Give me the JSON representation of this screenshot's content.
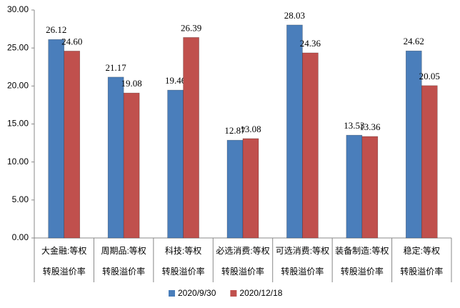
{
  "chart_data": {
    "type": "bar",
    "categories": [
      [
        "大金融:等权",
        "转股溢价率"
      ],
      [
        "周期品:等权",
        "转股溢价率"
      ],
      [
        "科技:等权",
        "转股溢价率"
      ],
      [
        "必选消费:等权",
        "转股溢价率"
      ],
      [
        "可选消费:等权",
        "转股溢价率"
      ],
      [
        "装备制造:等权",
        "转股溢价率"
      ],
      [
        "稳定:等权",
        "转股溢价率"
      ]
    ],
    "series": [
      {
        "name": "2020/9/30",
        "color": "#4a7ebb",
        "values": [
          26.12,
          21.17,
          19.46,
          12.87,
          28.03,
          13.53,
          24.62
        ],
        "value_labels": [
          "26.12",
          "21.17",
          "19.46",
          "12.87",
          "28.03",
          "13.53",
          "24.62"
        ]
      },
      {
        "name": "2020/12/18",
        "color": "#c0504d",
        "values": [
          24.6,
          19.08,
          26.39,
          13.08,
          24.36,
          13.36,
          20.05
        ],
        "value_labels": [
          "24.60",
          "19.08",
          "26.39",
          "13.08",
          "24.36",
          "13.36",
          "20.05"
        ]
      }
    ],
    "ylim": [
      0,
      30
    ],
    "yticks": [
      {
        "value": 0,
        "label": "0.00"
      },
      {
        "value": 5,
        "label": "5.00"
      },
      {
        "value": 10,
        "label": "10.00"
      },
      {
        "value": 15,
        "label": "15.00"
      },
      {
        "value": 20,
        "label": "20.00"
      },
      {
        "value": 25,
        "label": "25.00"
      },
      {
        "value": 30,
        "label": "30.00"
      }
    ],
    "grid": false,
    "legend": "bottom"
  }
}
